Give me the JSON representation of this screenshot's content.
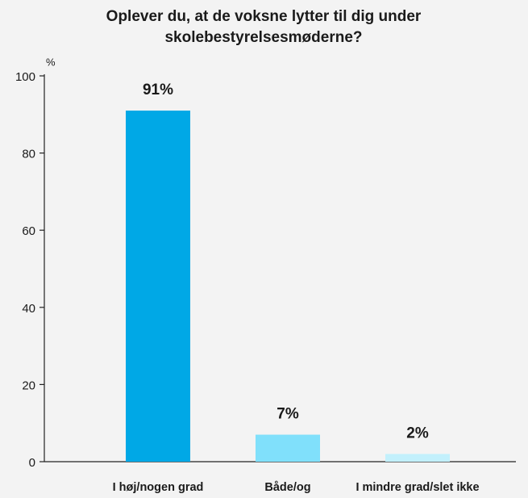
{
  "chart_data": {
    "type": "bar",
    "title": "Oplever du, at de voksne lytter til dig under skolebestyrelsesmøderne?",
    "ylabel": "%",
    "categories": [
      "I høj/nogen grad",
      "Både/og",
      "I mindre grad/slet ikke"
    ],
    "values": [
      91,
      7,
      2
    ],
    "value_labels": [
      "91%",
      "7%",
      "2%"
    ],
    "colors": [
      "#00a8e6",
      "#80e0fb",
      "#c2f0fc"
    ],
    "ylim": [
      0,
      100
    ],
    "yticks": [
      0,
      20,
      40,
      60,
      80,
      100
    ],
    "grid": false
  }
}
